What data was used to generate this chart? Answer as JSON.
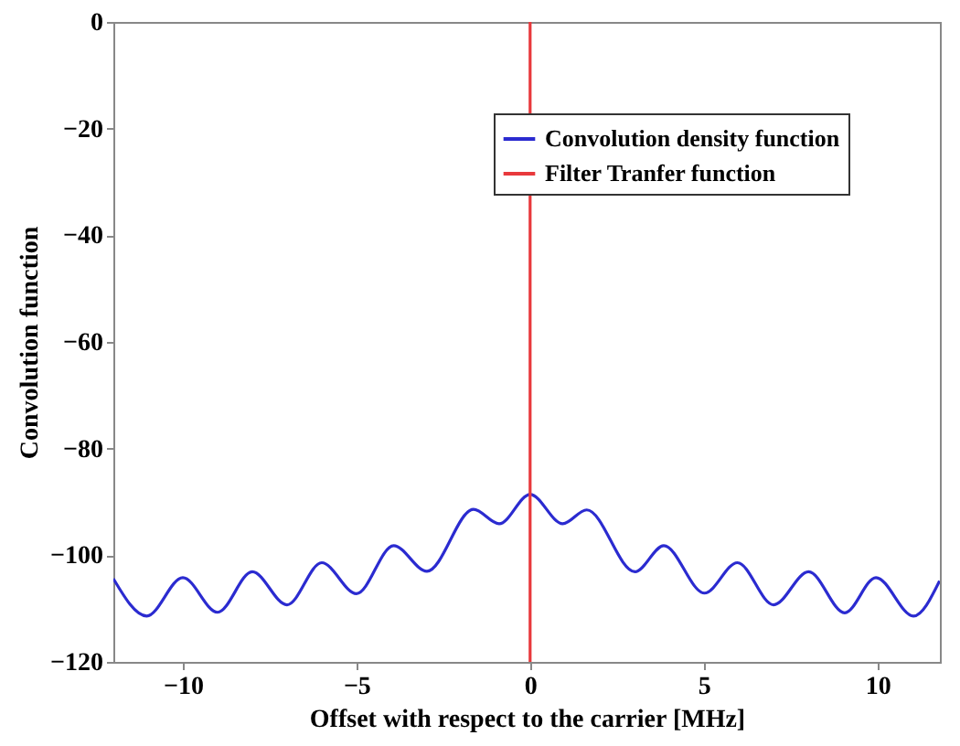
{
  "chart_data": {
    "type": "line",
    "xlabel": "Offset with respect to the carrier [MHz]",
    "ylabel": "Convolution function",
    "xlim": [
      -12,
      11.8
    ],
    "ylim": [
      -120,
      0
    ],
    "xticks": [
      -10,
      -5,
      0,
      5,
      10
    ],
    "yticks": [
      -120,
      -100,
      -80,
      -60,
      -40,
      -20,
      0
    ],
    "grid": false,
    "legend": "top right",
    "marker": "none",
    "line_style": "solid",
    "series": [
      {
        "name": "Convolution density function",
        "color": "#2b2bd0",
        "x": [
          -12.0,
          -11.04,
          -10.0,
          -9.0,
          -8.0,
          -7.0,
          -6.0,
          -5.0,
          -3.93,
          -2.97,
          -1.63,
          -0.89,
          0.0,
          0.94,
          1.63,
          3.02,
          3.85,
          5.02,
          5.97,
          7.01,
          8.02,
          9.06,
          9.96,
          11.04,
          11.79
        ],
        "values": [
          -104.4,
          -111.4,
          -104.2,
          -110.7,
          -103.1,
          -109.3,
          -101.4,
          -107.2,
          -98.2,
          -103.0,
          -91.4,
          -94.1,
          -88.6,
          -94.1,
          -91.5,
          -103.1,
          -98.2,
          -107.1,
          -101.4,
          -109.3,
          -103.1,
          -110.8,
          -104.2,
          -111.4,
          -104.8
        ]
      },
      {
        "name": "Filter Tranfer function",
        "color": "#e8393c",
        "x": [
          0,
          0
        ],
        "values": [
          0,
          -120
        ]
      }
    ]
  }
}
